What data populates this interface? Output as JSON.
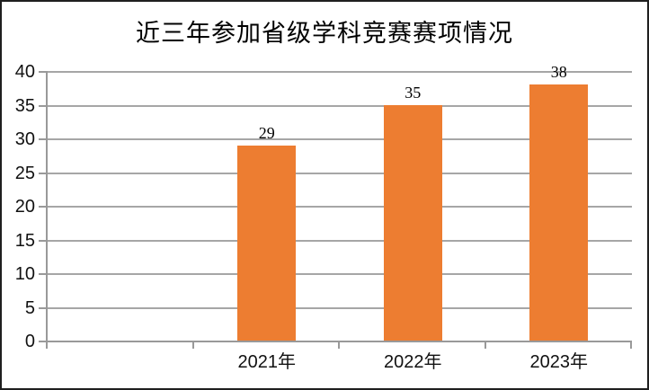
{
  "window": {
    "background": "#ffffff",
    "border_color": "#1f1f1f"
  },
  "chart_data": {
    "type": "bar",
    "title": "近三年参加省级学科竞赛赛项情况",
    "categories": [
      "2021年",
      "2022年",
      "2023年"
    ],
    "values": [
      29,
      35,
      38
    ],
    "xlabel": "",
    "ylabel": "",
    "ylim": [
      0,
      40
    ],
    "y_ticks": [
      0,
      5,
      10,
      15,
      20,
      25,
      30,
      35,
      40
    ],
    "grid": true,
    "legend": false,
    "data_labels_shown": true,
    "bar_color": "#ED7D31",
    "axis_color": "#999999",
    "gridline_color": "#A6A6A6",
    "text_color": "#111111",
    "total_slots": 4,
    "leading_empty_slots": 1
  }
}
